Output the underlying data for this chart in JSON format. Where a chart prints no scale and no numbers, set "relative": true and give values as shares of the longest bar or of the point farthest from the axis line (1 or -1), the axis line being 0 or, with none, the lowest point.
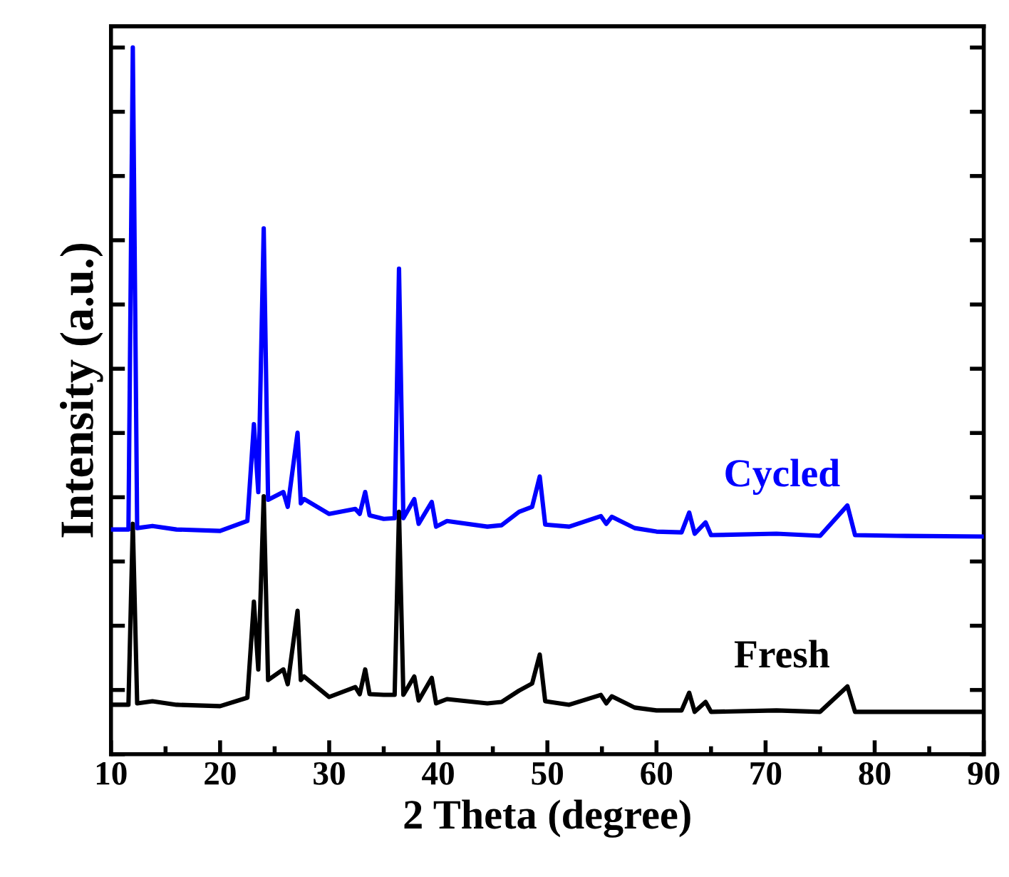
{
  "chart_data": {
    "type": "line",
    "xlabel": "2 Theta (degree)",
    "ylabel": "Intensity (a.u.)",
    "relative": true,
    "tick_labels": "x",
    "xlim": [
      10,
      90
    ],
    "xticks": [
      10,
      20,
      30,
      40,
      50,
      60,
      70,
      80,
      90
    ],
    "grid": false,
    "legend": false,
    "marker": "none",
    "line_style": "solid",
    "series": [
      {
        "name": "Cycled",
        "color": "#0000ff",
        "x": [
          10,
          11.6,
          12,
          12.4,
          13.8,
          16,
          20,
          22.5,
          23.1,
          23.5,
          24,
          24.4,
          25.8,
          26.2,
          27.1,
          27.4,
          27.7,
          30,
          32.4,
          32.8,
          33.3,
          33.7,
          35,
          36,
          36.4,
          36.8,
          37.8,
          38.2,
          39.4,
          39.8,
          40.8,
          44.5,
          45.8,
          47.4,
          48.6,
          49.3,
          49.8,
          52,
          54.9,
          55.4,
          55.9,
          58,
          60,
          62.3,
          63,
          63.5,
          64.5,
          65,
          71,
          75,
          77.5,
          78.2,
          82,
          90
        ],
        "values": [
          0.318,
          0.318,
          1.0,
          0.32,
          0.323,
          0.318,
          0.316,
          0.33,
          0.467,
          0.371,
          0.744,
          0.36,
          0.371,
          0.35,
          0.455,
          0.355,
          0.361,
          0.34,
          0.347,
          0.34,
          0.371,
          0.338,
          0.333,
          0.334,
          0.687,
          0.334,
          0.361,
          0.326,
          0.357,
          0.322,
          0.33,
          0.322,
          0.324,
          0.343,
          0.35,
          0.393,
          0.325,
          0.322,
          0.337,
          0.326,
          0.336,
          0.32,
          0.315,
          0.314,
          0.342,
          0.312,
          0.328,
          0.31,
          0.312,
          0.309,
          0.352,
          0.31,
          0.309,
          0.308
        ]
      },
      {
        "name": "Fresh",
        "color": "#000000",
        "x": [
          10,
          11.6,
          12,
          12.4,
          13.8,
          16,
          20,
          22.5,
          23.1,
          23.5,
          24,
          24.4,
          25.8,
          26.2,
          27.1,
          27.4,
          27.7,
          30,
          32.4,
          32.8,
          33.3,
          33.7,
          35,
          36,
          36.4,
          36.8,
          37.8,
          38.2,
          39.4,
          39.8,
          40.8,
          44.5,
          45.8,
          47.4,
          48.6,
          49.3,
          49.8,
          52,
          54.9,
          55.4,
          55.9,
          58,
          60,
          62.3,
          63,
          63.5,
          64.5,
          65,
          71,
          75,
          77.5,
          78.2,
          82,
          90
        ],
        "values": [
          0.07,
          0.07,
          0.326,
          0.072,
          0.075,
          0.07,
          0.068,
          0.08,
          0.216,
          0.12,
          0.365,
          0.105,
          0.12,
          0.099,
          0.203,
          0.105,
          0.11,
          0.081,
          0.095,
          0.085,
          0.12,
          0.085,
          0.084,
          0.084,
          0.343,
          0.084,
          0.11,
          0.076,
          0.108,
          0.072,
          0.078,
          0.072,
          0.074,
          0.09,
          0.1,
          0.141,
          0.075,
          0.07,
          0.084,
          0.072,
          0.082,
          0.066,
          0.062,
          0.062,
          0.087,
          0.06,
          0.074,
          0.06,
          0.062,
          0.06,
          0.096,
          0.06,
          0.06,
          0.06
        ]
      }
    ]
  }
}
